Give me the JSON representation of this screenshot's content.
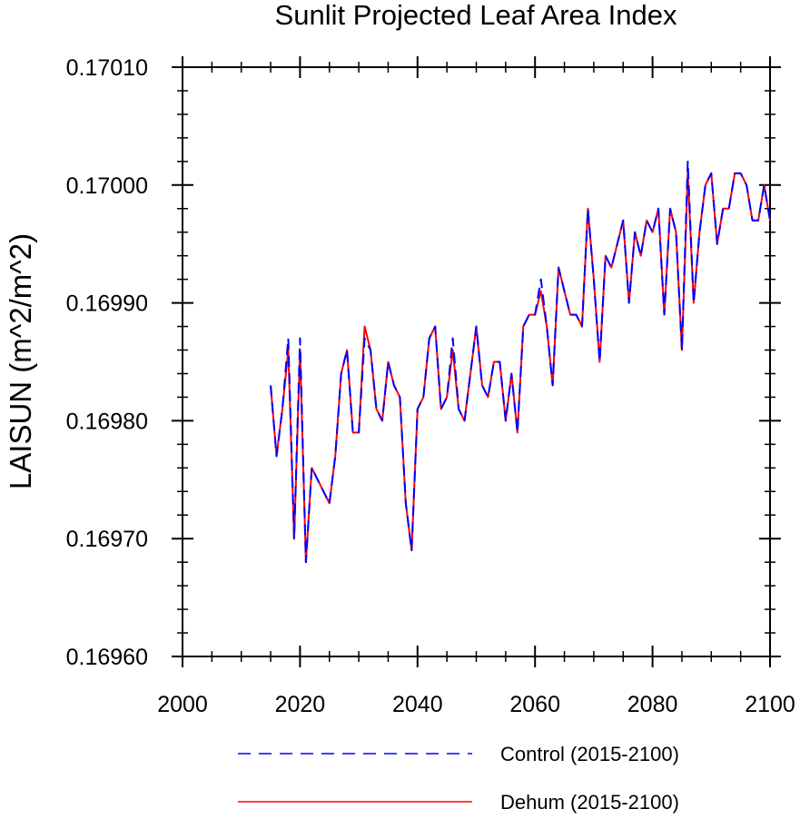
{
  "chart_data": {
    "type": "line",
    "title": "Sunlit Projected Leaf Area Index",
    "xlabel": "",
    "ylabel": "LAISUN  (m^2/m^2)",
    "xlim": [
      2000,
      2100
    ],
    "ylim": [
      0.1696,
      0.1701
    ],
    "x_ticks": [
      2000,
      2020,
      2040,
      2060,
      2080,
      2100
    ],
    "x_tick_labels": [
      "2000",
      "2020",
      "2040",
      "2060",
      "2080",
      "2100"
    ],
    "y_ticks": [
      0.1696,
      0.1697,
      0.1698,
      0.1699,
      0.17,
      0.1701
    ],
    "y_tick_labels": [
      "0.16960",
      "0.16970",
      "0.16980",
      "0.16990",
      "0.17000",
      "0.17010"
    ],
    "grid": false,
    "legend_position": "bottom",
    "x": [
      2015,
      2016,
      2017,
      2018,
      2019,
      2020,
      2021,
      2022,
      2023,
      2024,
      2025,
      2026,
      2027,
      2028,
      2029,
      2030,
      2031,
      2032,
      2033,
      2034,
      2035,
      2036,
      2037,
      2038,
      2039,
      2040,
      2041,
      2042,
      2043,
      2044,
      2045,
      2046,
      2047,
      2048,
      2049,
      2050,
      2051,
      2052,
      2053,
      2054,
      2055,
      2056,
      2057,
      2058,
      2059,
      2060,
      2061,
      2062,
      2063,
      2064,
      2065,
      2066,
      2067,
      2068,
      2069,
      2070,
      2071,
      2072,
      2073,
      2074,
      2075,
      2076,
      2077,
      2078,
      2079,
      2080,
      2081,
      2082,
      2083,
      2084,
      2085,
      2086,
      2087,
      2088,
      2089,
      2090,
      2091,
      2092,
      2093,
      2094,
      2095,
      2096,
      2097,
      2098,
      2099,
      2100
    ],
    "series": [
      {
        "name": "Control (2015-2100)",
        "color": "#0000ff",
        "style": "dashed",
        "values": [
          0.16983,
          0.16977,
          0.16981,
          0.16987,
          0.1697,
          0.16987,
          0.16968,
          0.16976,
          0.16975,
          0.16974,
          0.16973,
          0.16977,
          0.16984,
          0.16986,
          0.16979,
          0.16979,
          0.16987,
          0.16986,
          0.16981,
          0.1698,
          0.16985,
          0.16983,
          0.16982,
          0.16973,
          0.16969,
          0.16981,
          0.16982,
          0.16987,
          0.16988,
          0.16981,
          0.16982,
          0.16987,
          0.16981,
          0.1698,
          0.16984,
          0.16988,
          0.16983,
          0.16982,
          0.16985,
          0.16985,
          0.1698,
          0.16984,
          0.16979,
          0.16988,
          0.16989,
          0.16989,
          0.16992,
          0.16988,
          0.16983,
          0.16993,
          0.16991,
          0.16989,
          0.16989,
          0.16988,
          0.16998,
          0.16992,
          0.16985,
          0.16994,
          0.16993,
          0.16995,
          0.16997,
          0.1699,
          0.16996,
          0.16994,
          0.16997,
          0.16996,
          0.16998,
          0.16989,
          0.16998,
          0.16996,
          0.16986,
          0.17002,
          0.1699,
          0.16996,
          0.17,
          0.17001,
          0.16995,
          0.16998,
          0.16998,
          0.17001,
          0.17001,
          0.17,
          0.16997,
          0.16997,
          0.17,
          0.16997
        ]
      },
      {
        "name": "Dehum (2015-2100)",
        "color": "#ff0000",
        "style": "solid",
        "values": [
          0.16983,
          0.16977,
          0.16981,
          0.16986,
          0.1697,
          0.16986,
          0.16968,
          0.16976,
          0.16975,
          0.16974,
          0.16973,
          0.16977,
          0.16984,
          0.16986,
          0.16979,
          0.16979,
          0.16988,
          0.16986,
          0.16981,
          0.1698,
          0.16985,
          0.16983,
          0.16982,
          0.16973,
          0.16969,
          0.16981,
          0.16982,
          0.16987,
          0.16988,
          0.16981,
          0.16982,
          0.16986,
          0.16981,
          0.1698,
          0.16984,
          0.16988,
          0.16983,
          0.16982,
          0.16985,
          0.16985,
          0.1698,
          0.16984,
          0.16979,
          0.16988,
          0.16989,
          0.16989,
          0.16991,
          0.16988,
          0.16983,
          0.16993,
          0.16991,
          0.16989,
          0.16989,
          0.16988,
          0.16998,
          0.16992,
          0.16985,
          0.16994,
          0.16993,
          0.16995,
          0.16997,
          0.1699,
          0.16996,
          0.16994,
          0.16997,
          0.16996,
          0.16998,
          0.16989,
          0.16998,
          0.16996,
          0.16986,
          0.17001,
          0.1699,
          0.16996,
          0.17,
          0.17001,
          0.16995,
          0.16998,
          0.16998,
          0.17001,
          0.17001,
          0.17,
          0.16997,
          0.16997,
          0.17,
          0.16997
        ]
      }
    ]
  }
}
